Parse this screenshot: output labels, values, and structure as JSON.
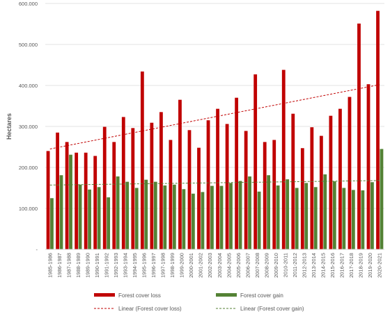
{
  "chart_data": {
    "type": "bar",
    "title": "",
    "xlabel": "",
    "ylabel": "Hectares",
    "ylim": [
      0,
      600000
    ],
    "yticks": [
      {
        "value": 0,
        "label": "-"
      },
      {
        "value": 100000,
        "label": "100.000"
      },
      {
        "value": 200000,
        "label": "200.000"
      },
      {
        "value": 300000,
        "label": "300.000"
      },
      {
        "value": 400000,
        "label": "400.000"
      },
      {
        "value": 500000,
        "label": "500.000"
      },
      {
        "value": 600000,
        "label": "600.000"
      }
    ],
    "grid": true,
    "legend_position": "bottom",
    "categories": [
      "1985-1986",
      "1986-1987",
      "1987-1988",
      "1988-1989",
      "1989-1990",
      "1990-1991",
      "1991-1992",
      "1992-1993",
      "1993-1994",
      "1994-1995",
      "1995-1996",
      "1996-1997",
      "1997-1998",
      "1998-1999",
      "1999-2000",
      "2000-2001",
      "2001-2002",
      "2002-2003",
      "2003-2004",
      "2004-2005",
      "2005-2006",
      "2006-2007",
      "2007-2008",
      "2008-2009",
      "2009-2010",
      "2010-2011",
      "2011-2012",
      "2012-2013",
      "2013-2014",
      "2014-2015",
      "2015-2016",
      "2016-2017",
      "2017-2018",
      "2018-2019",
      "2019-2020",
      "2020-2021"
    ],
    "series": [
      {
        "name": "Forest cover loss",
        "color": "#c00000",
        "values": [
          240000,
          285000,
          262000,
          236000,
          236000,
          228000,
          299000,
          262000,
          323000,
          296000,
          434000,
          309000,
          335000,
          267000,
          365000,
          291000,
          248000,
          315000,
          343000,
          306000,
          370000,
          289000,
          427000,
          262000,
          267000,
          438000,
          331000,
          247000,
          298000,
          277000,
          326000,
          343000,
          372000,
          551000,
          403000,
          582000
        ]
      },
      {
        "name": "Forest cover gain",
        "color": "#548235",
        "values": [
          125000,
          181000,
          231000,
          158000,
          146000,
          152000,
          127000,
          178000,
          165000,
          150000,
          170000,
          165000,
          156000,
          158000,
          147000,
          136000,
          140000,
          155000,
          155000,
          162000,
          167000,
          178000,
          141000,
          181000,
          156000,
          171000,
          150000,
          162000,
          152000,
          183000,
          166000,
          150000,
          145000,
          144000,
          164000,
          245000
        ]
      }
    ],
    "trendlines": [
      {
        "name": "Linear (Forest cover loss)",
        "color": "#c00000",
        "start": 245000,
        "end": 402000
      },
      {
        "name": "Linear (Forest cover gain)",
        "color": "#548235",
        "start": 157000,
        "end": 168000
      }
    ]
  }
}
